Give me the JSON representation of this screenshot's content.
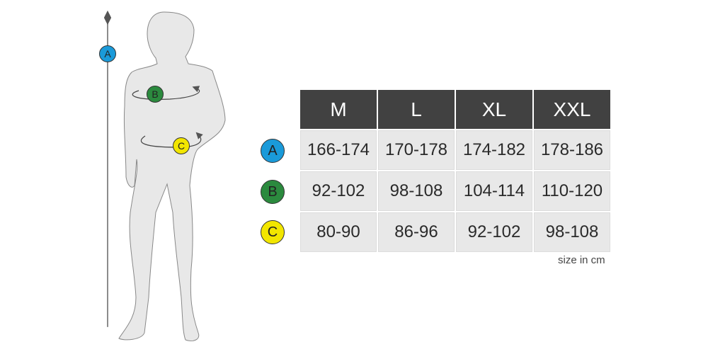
{
  "markers": [
    {
      "letter": "A",
      "color": "#1a9ad9"
    },
    {
      "letter": "B",
      "color": "#2b8a3e"
    },
    {
      "letter": "C",
      "color": "#f2e600"
    }
  ],
  "table": {
    "headers": [
      "M",
      "L",
      "XL",
      "XXL"
    ],
    "rows": [
      {
        "marker": "A",
        "values": [
          "166-174",
          "170-178",
          "174-182",
          "178-186"
        ]
      },
      {
        "marker": "B",
        "values": [
          "92-102",
          "98-108",
          "104-114",
          "110-120"
        ]
      },
      {
        "marker": "C",
        "values": [
          "80-90",
          "86-96",
          "92-102",
          "98-108"
        ]
      }
    ]
  },
  "unit_note": "size in cm"
}
